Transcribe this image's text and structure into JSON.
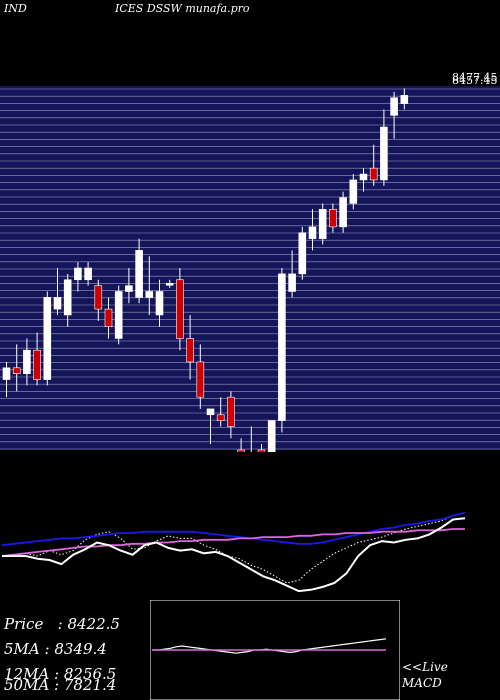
{
  "header": {
    "left": "IND",
    "right": "ICES DSSW munafa.pro"
  },
  "stats": [
    {
      "label": "Price",
      "value": "8422.5",
      "text": "Price   : 8422.5"
    },
    {
      "label": "5MA",
      "value": "8349.4",
      "text": "5MA : 8349.4"
    },
    {
      "label": "12MA",
      "value": "8256.5",
      "text": "12MA : 8256.5"
    },
    {
      "label": "50MA",
      "value": "7821.4",
      "text": "50MA : 7821.4"
    }
  ],
  "macd_panel": {
    "label_line1": "<<Live",
    "label_line2": "MACD"
  },
  "colors": {
    "price_bg": "#14145a",
    "grid": "#c8c8dc",
    "up": "#ffffff",
    "down": "#cc0000",
    "ma_fast": "#1a1aee",
    "ma_slow": "#dd66dd",
    "osc": "#ffffff",
    "dotted": "#ffffff"
  },
  "chart_data": [
    {
      "type": "candlestick",
      "title": "",
      "price_labels_visible": [
        "8457.45",
        "8477.45"
      ],
      "ylim": [
        5400,
        8500
      ],
      "grid": true,
      "candles": [
        {
          "o": 6000,
          "h": 6150,
          "l": 5850,
          "c": 6100
        },
        {
          "o": 6100,
          "h": 6300,
          "l": 5900,
          "c": 6050
        },
        {
          "o": 6050,
          "h": 6350,
          "l": 5950,
          "c": 6250
        },
        {
          "o": 6250,
          "h": 6400,
          "l": 5950,
          "c": 6000
        },
        {
          "o": 6000,
          "h": 6750,
          "l": 5950,
          "c": 6700
        },
        {
          "o": 6600,
          "h": 6950,
          "l": 6550,
          "c": 6700
        },
        {
          "o": 6550,
          "h": 6900,
          "l": 6450,
          "c": 6850
        },
        {
          "o": 6850,
          "h": 7000,
          "l": 6750,
          "c": 6950
        },
        {
          "o": 6850,
          "h": 7000,
          "l": 6800,
          "c": 6950
        },
        {
          "o": 6800,
          "h": 6850,
          "l": 6500,
          "c": 6600
        },
        {
          "o": 6600,
          "h": 6700,
          "l": 6350,
          "c": 6450
        },
        {
          "o": 6350,
          "h": 6800,
          "l": 6300,
          "c": 6750
        },
        {
          "o": 6750,
          "h": 6950,
          "l": 6650,
          "c": 6800
        },
        {
          "o": 6700,
          "h": 7200,
          "l": 6650,
          "c": 7100
        },
        {
          "o": 6700,
          "h": 7050,
          "l": 6550,
          "c": 6750
        },
        {
          "o": 6550,
          "h": 6850,
          "l": 6450,
          "c": 6750
        },
        {
          "o": 6820,
          "h": 6850,
          "l": 6780,
          "c": 6820
        },
        {
          "o": 6850,
          "h": 6950,
          "l": 6250,
          "c": 6350
        },
        {
          "o": 6350,
          "h": 6550,
          "l": 6000,
          "c": 6150
        },
        {
          "o": 6150,
          "h": 6300,
          "l": 5750,
          "c": 5850
        },
        {
          "o": 5700,
          "h": 5750,
          "l": 5450,
          "c": 5750
        },
        {
          "o": 5700,
          "h": 5850,
          "l": 5600,
          "c": 5650
        },
        {
          "o": 5850,
          "h": 5900,
          "l": 5500,
          "c": 5600
        },
        {
          "o": 5400,
          "h": 5500,
          "l": 4750,
          "c": 4900
        },
        {
          "o": 4900,
          "h": 5600,
          "l": 4600,
          "c": 5200
        },
        {
          "o": 5400,
          "h": 5450,
          "l": 5150,
          "c": 5350
        },
        {
          "o": 5000,
          "h": 5650,
          "l": 4850,
          "c": 5650
        },
        {
          "o": 5650,
          "h": 6950,
          "l": 5550,
          "c": 6900
        },
        {
          "o": 6750,
          "h": 7100,
          "l": 6700,
          "c": 6900
        },
        {
          "o": 6900,
          "h": 7300,
          "l": 6850,
          "c": 7250
        },
        {
          "o": 7200,
          "h": 7450,
          "l": 7100,
          "c": 7300
        },
        {
          "o": 7200,
          "h": 7500,
          "l": 7150,
          "c": 7450
        },
        {
          "o": 7450,
          "h": 7500,
          "l": 7250,
          "c": 7300
        },
        {
          "o": 7300,
          "h": 7600,
          "l": 7250,
          "c": 7550
        },
        {
          "o": 7500,
          "h": 7750,
          "l": 7450,
          "c": 7700
        },
        {
          "o": 7700,
          "h": 7800,
          "l": 7600,
          "c": 7750
        },
        {
          "o": 7800,
          "h": 8000,
          "l": 7650,
          "c": 7700
        },
        {
          "o": 7700,
          "h": 8300,
          "l": 7650,
          "c": 8150
        },
        {
          "o": 8250,
          "h": 8450,
          "l": 8050,
          "c": 8400
        },
        {
          "o": 8350,
          "h": 8480,
          "l": 8300,
          "c": 8420
        }
      ]
    },
    {
      "type": "line",
      "title": "",
      "x": [
        0,
        1,
        2,
        3,
        4,
        5,
        6,
        7,
        8,
        9,
        10,
        11,
        12,
        13,
        14,
        15,
        16,
        17,
        18,
        19,
        20,
        21,
        22,
        23,
        24,
        25,
        26,
        27,
        28,
        29,
        30,
        31,
        32,
        33,
        34,
        35,
        36,
        37,
        38,
        39
      ],
      "series": [
        {
          "values": [
            40,
            40,
            42,
            40,
            44,
            41,
            44,
            52,
            56,
            58,
            53,
            45,
            46,
            51,
            55,
            53,
            53,
            48,
            45,
            40,
            38,
            33,
            30,
            25,
            20,
            22,
            30,
            36,
            42,
            46,
            50,
            52,
            54,
            57,
            60,
            62,
            64,
            66,
            70,
            72
          ]
        },
        {
          "values": [
            48,
            49,
            50,
            51,
            52,
            53,
            53,
            54,
            55,
            56,
            57,
            57,
            58,
            58,
            58,
            58,
            58,
            57,
            56,
            55,
            54,
            53,
            52,
            51,
            50,
            49,
            49,
            50,
            52,
            54,
            56,
            58,
            60,
            61,
            63,
            64,
            66,
            67,
            70,
            72
          ]
        },
        {
          "values": [
            40,
            41,
            42,
            43,
            44,
            45,
            46,
            47,
            47,
            48,
            48,
            49,
            49,
            50,
            50,
            51,
            51,
            52,
            52,
            52,
            53,
            53,
            54,
            54,
            54,
            55,
            55,
            56,
            56,
            57,
            57,
            57,
            58,
            58,
            58,
            59,
            59,
            59,
            60,
            60
          ]
        },
        {
          "values": [
            40,
            40,
            40,
            38,
            37,
            34,
            41,
            45,
            50,
            48,
            44,
            41,
            48,
            50,
            46,
            44,
            45,
            42,
            43,
            40,
            35,
            30,
            25,
            22,
            18,
            14,
            15,
            17,
            20,
            27,
            40,
            48,
            51,
            50,
            52,
            53,
            56,
            61,
            67,
            68
          ]
        }
      ]
    },
    {
      "type": "line",
      "title": "",
      "x": [
        0,
        1,
        2,
        3,
        4,
        5,
        6,
        7,
        8,
        9,
        10,
        11,
        12,
        13,
        14,
        15,
        16,
        17,
        18,
        19,
        20,
        21,
        22,
        23,
        24,
        25,
        26,
        27,
        28,
        29,
        30,
        31,
        32,
        33,
        34,
        35,
        36,
        37,
        38,
        39
      ],
      "series": [
        {
          "values": [
            0,
            0,
            0.5,
            1,
            2,
            2.5,
            2,
            1.5,
            1,
            0.5,
            0,
            -0.5,
            -1,
            -1.5,
            -2,
            -1.5,
            -1,
            0,
            0,
            0.5,
            0,
            -0.5,
            -1,
            -1.5,
            -1,
            0,
            0.5,
            1,
            1.5,
            2,
            2.5,
            3,
            3.5,
            4,
            4.5,
            5,
            5.5,
            6,
            6.5,
            7
          ]
        },
        {
          "values": [
            0,
            0,
            0,
            0,
            0,
            0,
            0,
            0,
            0,
            0,
            0,
            0,
            0,
            0,
            0,
            0,
            0,
            0,
            0,
            0,
            0,
            0,
            0,
            0,
            0,
            0,
            0,
            0,
            0,
            0,
            0,
            0,
            0,
            0,
            0,
            0,
            0,
            0,
            0,
            0
          ]
        }
      ]
    }
  ]
}
